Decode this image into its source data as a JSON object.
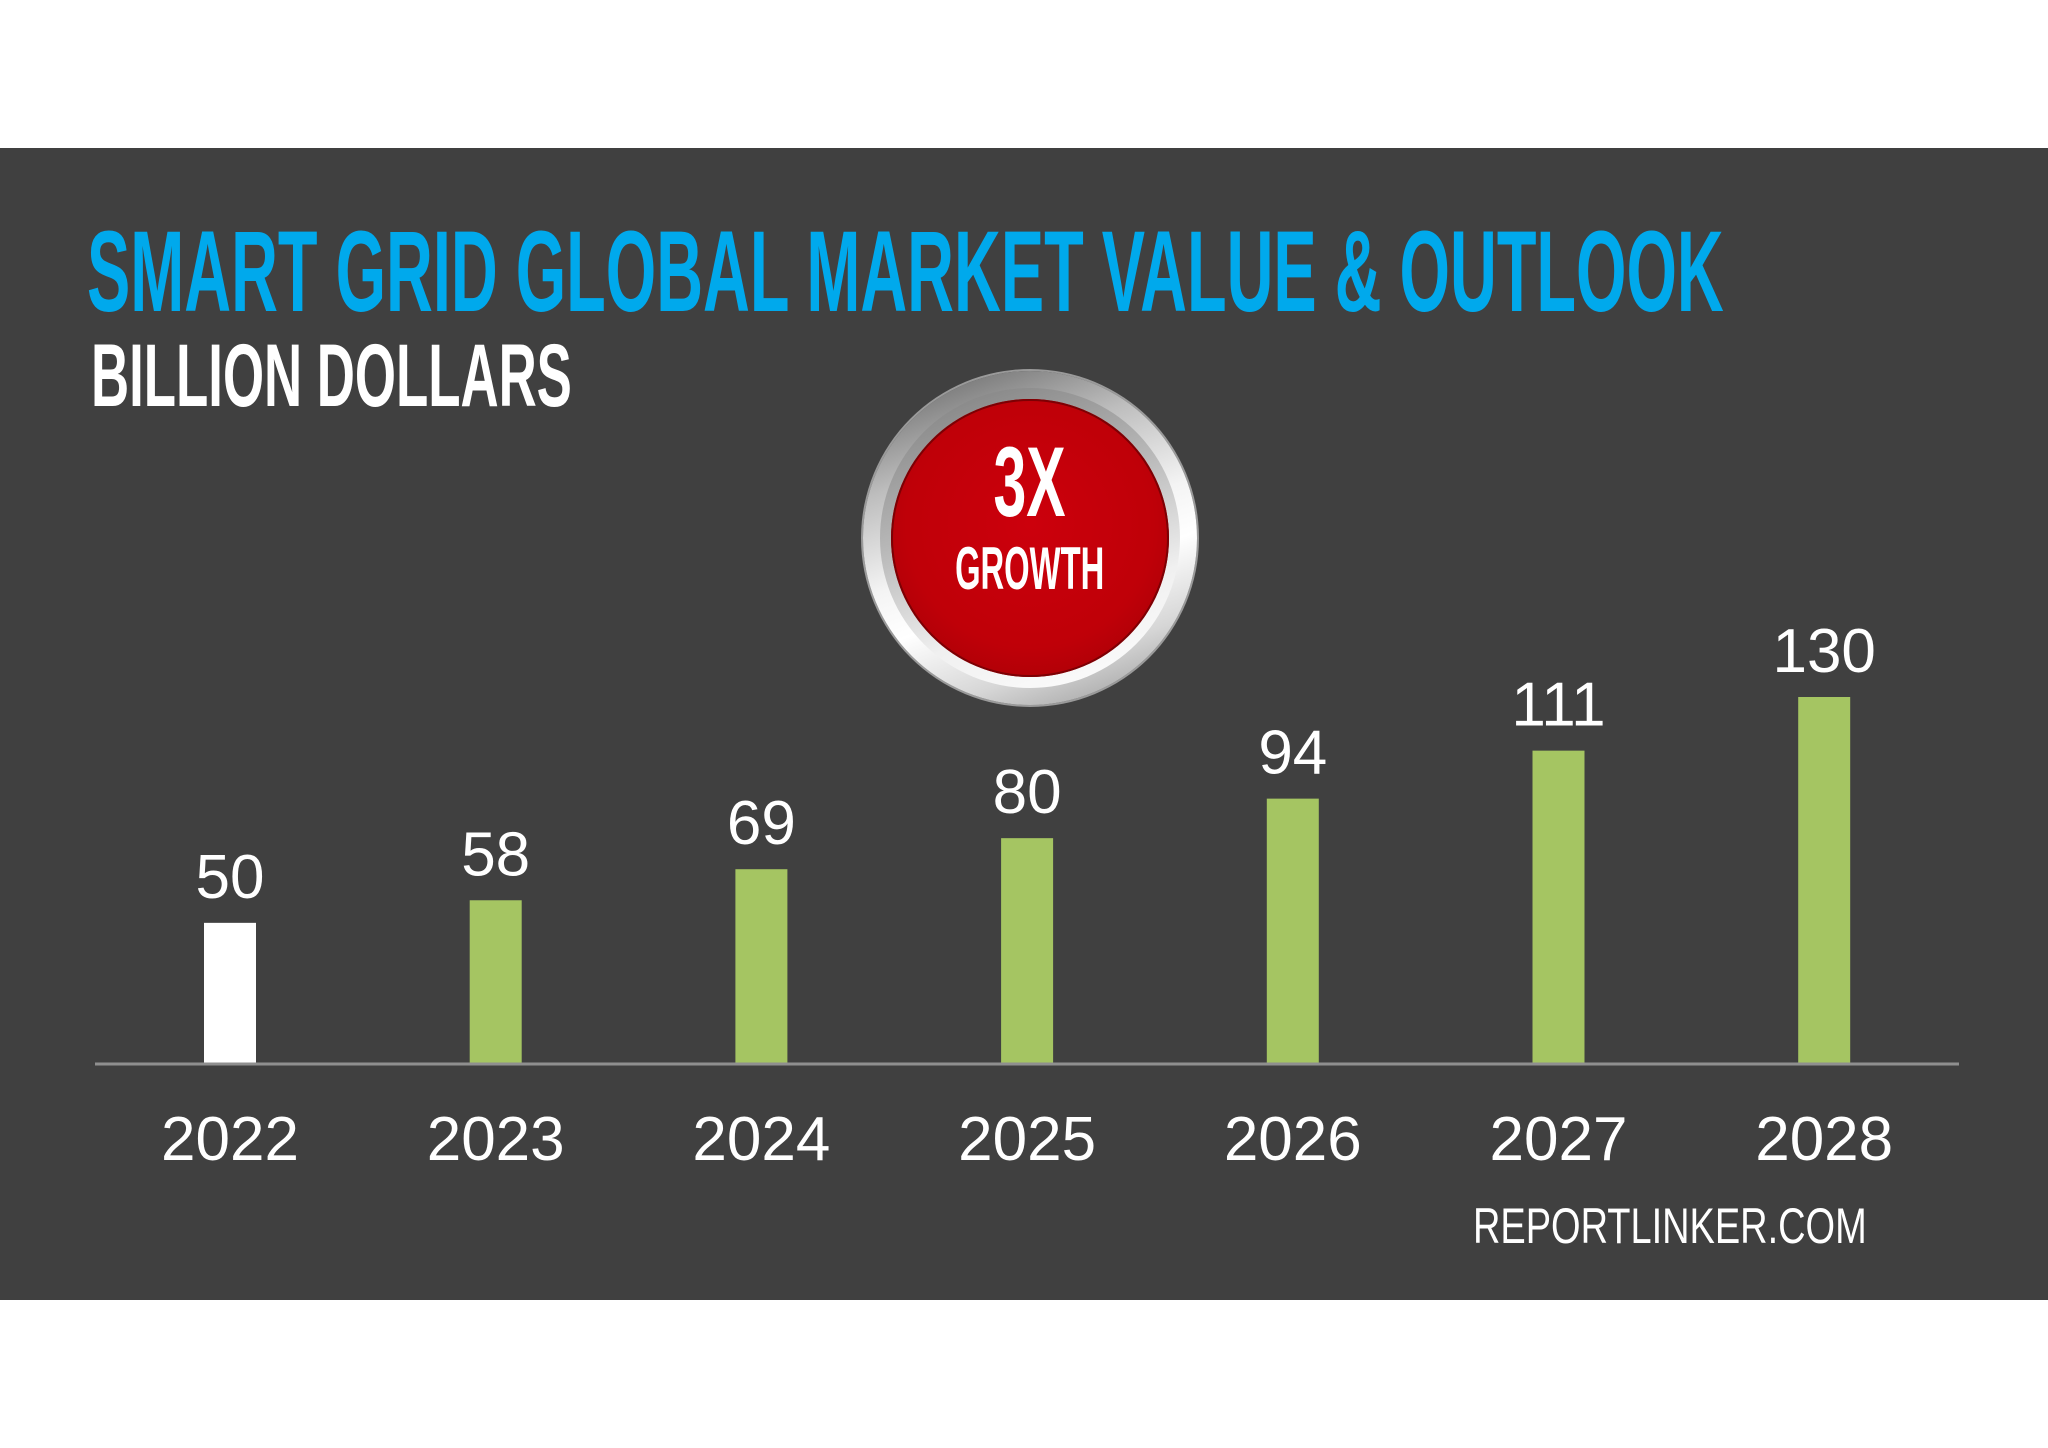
{
  "badge": {
    "value": "3X",
    "label": "GROWTH"
  },
  "source": "REPORTLINKER.COM",
  "colors": {
    "panel": "#404040",
    "title": "#00a9ec",
    "subtitle": "#ffffff",
    "badge_red": "#c00000",
    "axis": "#8f8f8f",
    "label_text": "#ffffff"
  },
  "chart_data": {
    "type": "bar",
    "title": "SMART GRID GLOBAL MARKET VALUE & OUTLOOK",
    "subtitle": "BILLION DOLLARS",
    "xlabel": "",
    "ylabel": "",
    "categories": [
      "2022",
      "2023",
      "2024",
      "2025",
      "2026",
      "2027",
      "2028"
    ],
    "values": [
      50,
      58,
      69,
      80,
      94,
      111,
      130
    ],
    "bar_colors": [
      "#ffffff",
      "#a5c562",
      "#a5c562",
      "#a5c562",
      "#a5c562",
      "#a5c562",
      "#a5c562"
    ],
    "ylim": [
      0,
      130
    ],
    "grid": false,
    "data_labels": true
  }
}
